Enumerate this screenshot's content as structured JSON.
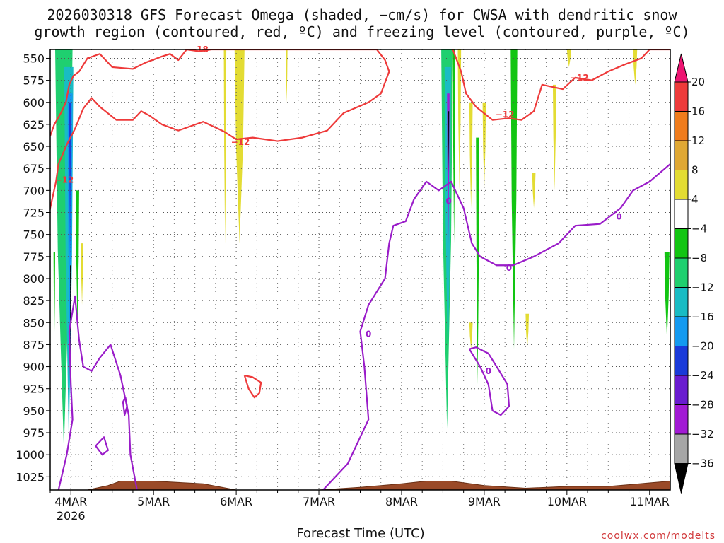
{
  "title": {
    "line1": "2026030318 GFS Forecast Omega (shaded, −cm/s) for CWSA with dendritic snow",
    "line2": "growth region (contoured, red, ºC) and freezing level (contoured, purple, ºC)"
  },
  "credit": "coolwx.com/modelts",
  "chart_data": {
    "type": "heatmap",
    "xlabel": "Forecast Time (UTC)",
    "ylabel": "Pressure (hPa)",
    "x_ticks": [
      {
        "label": "4MAR",
        "sublabel": "2026",
        "day": 0
      },
      {
        "label": "5MAR",
        "day": 1
      },
      {
        "label": "6MAR",
        "day": 2
      },
      {
        "label": "7MAR",
        "day": 3
      },
      {
        "label": "8MAR",
        "day": 4
      },
      {
        "label": "9MAR",
        "day": 5
      },
      {
        "label": "10MAR",
        "day": 6
      },
      {
        "label": "11MAR",
        "day": 7
      }
    ],
    "xlim": [
      -0.25,
      7.25
    ],
    "y_ticks": [
      550,
      575,
      600,
      625,
      650,
      675,
      700,
      725,
      750,
      775,
      800,
      825,
      850,
      875,
      900,
      925,
      950,
      975,
      1000,
      1025
    ],
    "ylim": [
      540,
      1040
    ],
    "grid": true,
    "colorbar": {
      "labels": [
        "20",
        "16",
        "12",
        "8",
        "4",
        "−4",
        "−8",
        "−12",
        "−16",
        "−20",
        "−24",
        "−28",
        "−32",
        "−36"
      ],
      "bins": [
        {
          "lo": 16,
          "hi": 20,
          "color": "#ee3a3a"
        },
        {
          "lo": 12,
          "hi": 16,
          "color": "#f07c1d"
        },
        {
          "lo": 8,
          "hi": 12,
          "color": "#e0a834"
        },
        {
          "lo": 4,
          "hi": 8,
          "color": "#e3dc33"
        },
        {
          "lo": -4,
          "hi": 4,
          "color": "#ffffff"
        },
        {
          "lo": -8,
          "hi": -4,
          "color": "#12c512"
        },
        {
          "lo": -12,
          "hi": -8,
          "color": "#1fcf6f"
        },
        {
          "lo": -16,
          "hi": -12,
          "color": "#19bcc4"
        },
        {
          "lo": -20,
          "hi": -16,
          "color": "#149af0"
        },
        {
          "lo": -24,
          "hi": -20,
          "color": "#1a3ad9"
        },
        {
          "lo": -28,
          "hi": -24,
          "color": "#6a1cd0"
        },
        {
          "lo": -32,
          "hi": -28,
          "color": "#a21ad4"
        },
        {
          "lo": -36,
          "hi": -32,
          "color": "#a6a6a6"
        }
      ],
      "over_color": "#ee1572",
      "under_color": "#000000"
    },
    "omega_regions": [
      {
        "name": "mar4-ascent-outer",
        "color": "#1fcf6f",
        "t": [
          -0.19,
          0.02
        ],
        "p_top": 540,
        "p_bot": 995
      },
      {
        "name": "mar4-ascent-cyan",
        "color": "#19bcc4",
        "t": [
          -0.08,
          0.03
        ],
        "p_top": 560,
        "p_bot": 990
      },
      {
        "name": "mar4-ascent-blue",
        "color": "#149af0",
        "t": [
          -0.04,
          0.02
        ],
        "p_top": 590,
        "p_bot": 940
      },
      {
        "name": "mar4-ascent-core",
        "color": "#1a3ad9",
        "t": [
          -0.02,
          0.0
        ],
        "p_top": 600,
        "p_bot": 780
      },
      {
        "name": "mar4-ascent-max",
        "color": "#000000",
        "t": [
          -0.01,
          0.0
        ],
        "p_top": 785,
        "p_bot": 905
      },
      {
        "name": "mar4-green-side",
        "color": "#12c512",
        "t": [
          0.06,
          0.1
        ],
        "p_top": 700,
        "p_bot": 860
      },
      {
        "name": "mar4-green-left",
        "color": "#12c512",
        "t": [
          -0.21,
          -0.19
        ],
        "p_top": 770,
        "p_bot": 870
      },
      {
        "name": "mar4-yellow",
        "color": "#e3dc33",
        "t": [
          0.12,
          0.15
        ],
        "p_top": 760,
        "p_bot": 830
      },
      {
        "name": "mar6-yellow-a",
        "color": "#e3dc33",
        "t": [
          1.85,
          1.88
        ],
        "p_top": 540,
        "p_bot": 760
      },
      {
        "name": "mar6-yellow-b",
        "color": "#e3dc33",
        "t": [
          1.98,
          2.1
        ],
        "p_top": 540,
        "p_bot": 760
      },
      {
        "name": "mar6-yellow-c",
        "color": "#e3dc33",
        "t": [
          2.6,
          2.62
        ],
        "p_top": 540,
        "p_bot": 600
      },
      {
        "name": "mar8-ascent-outer",
        "color": "#1fcf6f",
        "t": [
          4.48,
          4.62
        ],
        "p_top": 540,
        "p_bot": 970
      },
      {
        "name": "mar8-ascent-cyan",
        "color": "#19bcc4",
        "t": [
          4.52,
          4.6
        ],
        "p_top": 560,
        "p_bot": 900
      },
      {
        "name": "mar8-ascent-violet",
        "color": "#a21ad4",
        "t": [
          4.55,
          4.58
        ],
        "p_top": 590,
        "p_bot": 760
      },
      {
        "name": "mar8-ascent-max",
        "color": "#000000",
        "t": [
          4.565,
          4.575
        ],
        "p_top": 610,
        "p_bot": 680
      },
      {
        "name": "mar8-green-a",
        "color": "#12c512",
        "t": [
          4.62,
          4.65
        ],
        "p_top": 540,
        "p_bot": 760
      },
      {
        "name": "mar8-green-b",
        "color": "#12c512",
        "t": [
          4.9,
          4.94
        ],
        "p_top": 640,
        "p_bot": 920
      },
      {
        "name": "mar9-green-c",
        "color": "#12c512",
        "t": [
          5.32,
          5.4
        ],
        "p_top": 540,
        "p_bot": 880
      },
      {
        "name": "mar8-yellow-a",
        "color": "#e3dc33",
        "t": [
          4.68,
          4.72
        ],
        "p_top": 540,
        "p_bot": 700
      },
      {
        "name": "mar9-yellow-b",
        "color": "#e3dc33",
        "t": [
          4.82,
          4.86
        ],
        "p_top": 600,
        "p_bot": 720
      },
      {
        "name": "mar9-yellow-c",
        "color": "#e3dc33",
        "t": [
          4.98,
          5.02
        ],
        "p_top": 600,
        "p_bot": 700
      },
      {
        "name": "mar9-yellow-d",
        "color": "#e3dc33",
        "t": [
          4.82,
          4.86
        ],
        "p_top": 850,
        "p_bot": 880
      },
      {
        "name": "mar10-yellow-a",
        "color": "#e3dc33",
        "t": [
          5.5,
          5.54
        ],
        "p_top": 840,
        "p_bot": 880
      },
      {
        "name": "mar10-yellow-b",
        "color": "#e3dc33",
        "t": [
          5.58,
          5.62
        ],
        "p_top": 680,
        "p_bot": 720
      },
      {
        "name": "mar10-yellow-c",
        "color": "#e3dc33",
        "t": [
          5.83,
          5.87
        ],
        "p_top": 580,
        "p_bot": 700
      },
      {
        "name": "mar10-yellow-d",
        "color": "#e3dc33",
        "t": [
          6.0,
          6.05
        ],
        "p_top": 540,
        "p_bot": 560
      },
      {
        "name": "mar11-yellow",
        "color": "#e3dc33",
        "t": [
          6.8,
          6.85
        ],
        "p_top": 540,
        "p_bot": 580
      },
      {
        "name": "mar11-green",
        "color": "#12c512",
        "t": [
          7.18,
          7.24
        ],
        "p_top": 770,
        "p_bot": 870
      }
    ],
    "contours": [
      {
        "name": "dgz-minus12-upper",
        "level": -12,
        "color": "#ee3a3a",
        "points": [
          [
            -0.25,
            638
          ],
          [
            -0.2,
            625
          ],
          [
            -0.12,
            612
          ],
          [
            -0.06,
            600
          ],
          [
            -0.02,
            580
          ],
          [
            0.03,
            570
          ],
          [
            0.1,
            565
          ],
          [
            0.2,
            550
          ],
          [
            0.35,
            545
          ],
          [
            0.5,
            560
          ],
          [
            0.75,
            562
          ],
          [
            0.9,
            555
          ],
          [
            1.1,
            548
          ],
          [
            1.2,
            545
          ],
          [
            1.3,
            552
          ],
          [
            1.4,
            540
          ],
          [
            1.55,
            542
          ],
          [
            1.7,
            540
          ],
          [
            2.0,
            540
          ],
          [
            2.2,
            540
          ],
          [
            2.45,
            540
          ],
          [
            2.6,
            540
          ],
          [
            2.7,
            540
          ],
          [
            3.0,
            540
          ],
          [
            3.2,
            540
          ],
          [
            3.5,
            540
          ],
          [
            3.7,
            540
          ],
          [
            3.8,
            552
          ],
          [
            3.85,
            565
          ],
          [
            3.75,
            590
          ],
          [
            3.6,
            600
          ],
          [
            3.3,
            612
          ],
          [
            3.1,
            632
          ],
          [
            2.8,
            640
          ],
          [
            2.5,
            644
          ],
          [
            2.2,
            640
          ],
          [
            2.0,
            642
          ],
          [
            1.85,
            633
          ],
          [
            1.6,
            622
          ],
          [
            1.3,
            632
          ],
          [
            1.1,
            625
          ],
          [
            0.95,
            615
          ],
          [
            0.85,
            610
          ],
          [
            0.75,
            620
          ],
          [
            0.55,
            620
          ],
          [
            0.35,
            605
          ],
          [
            0.25,
            595
          ],
          [
            0.15,
            607
          ],
          [
            0.05,
            630
          ],
          [
            -0.05,
            648
          ],
          [
            -0.15,
            670
          ],
          [
            -0.18,
            690
          ],
          [
            -0.25,
            720
          ],
          [
            -0.3,
            745
          ]
        ]
      },
      {
        "name": "dgz-minus12-right",
        "level": -12,
        "color": "#ee3a3a",
        "points": [
          [
            4.62,
            540
          ],
          [
            4.72,
            565
          ],
          [
            4.78,
            590
          ],
          [
            4.9,
            605
          ],
          [
            5.1,
            620
          ],
          [
            5.3,
            618
          ],
          [
            5.45,
            620
          ],
          [
            5.6,
            610
          ],
          [
            5.7,
            580
          ],
          [
            5.95,
            585
          ],
          [
            6.1,
            572
          ],
          [
            6.3,
            575
          ],
          [
            6.5,
            565
          ],
          [
            6.7,
            557
          ],
          [
            6.9,
            550
          ],
          [
            7.0,
            540
          ],
          [
            7.25,
            540
          ]
        ]
      },
      {
        "name": "freezing-level-left",
        "level": 0,
        "color": "#9a1cc9",
        "points": [
          [
            -0.15,
            1040
          ],
          [
            -0.05,
            1000
          ],
          [
            0.02,
            960
          ],
          [
            0.0,
            920
          ],
          [
            -0.02,
            860
          ],
          [
            0.05,
            820
          ],
          [
            0.1,
            870
          ],
          [
            0.15,
            900
          ],
          [
            0.25,
            905
          ],
          [
            0.35,
            890
          ],
          [
            0.48,
            875
          ],
          [
            0.6,
            910
          ],
          [
            0.7,
            955
          ],
          [
            0.72,
            1000
          ],
          [
            0.8,
            1040
          ]
        ]
      },
      {
        "name": "freezing-level-mid",
        "level": 0,
        "color": "#9a1cc9",
        "points": [
          [
            3.05,
            1040
          ],
          [
            3.35,
            1010
          ],
          [
            3.6,
            960
          ],
          [
            3.55,
            900
          ],
          [
            3.5,
            860
          ],
          [
            3.6,
            830
          ],
          [
            3.8,
            800
          ],
          [
            3.85,
            760
          ],
          [
            3.9,
            740
          ],
          [
            4.05,
            735
          ],
          [
            4.15,
            710
          ],
          [
            4.3,
            690
          ],
          [
            4.45,
            700
          ],
          [
            4.6,
            690
          ],
          [
            4.75,
            720
          ],
          [
            4.85,
            760
          ],
          [
            4.95,
            775
          ],
          [
            5.15,
            785
          ],
          [
            5.35,
            785
          ],
          [
            5.6,
            775
          ],
          [
            5.9,
            760
          ],
          [
            6.1,
            740
          ],
          [
            6.4,
            738
          ],
          [
            6.65,
            720
          ],
          [
            6.8,
            700
          ],
          [
            7.0,
            690
          ],
          [
            7.25,
            670
          ]
        ]
      },
      {
        "name": "freezing-level-closed",
        "level": 0,
        "color": "#9a1cc9",
        "points": [
          [
            4.82,
            880
          ],
          [
            4.95,
            900
          ],
          [
            5.05,
            920
          ],
          [
            5.1,
            950
          ],
          [
            5.2,
            955
          ],
          [
            5.3,
            945
          ],
          [
            5.28,
            920
          ],
          [
            5.15,
            900
          ],
          [
            5.05,
            885
          ],
          [
            4.9,
            878
          ],
          [
            4.82,
            880
          ]
        ]
      },
      {
        "name": "small-red-closed",
        "level": -12,
        "color": "#ee3a3a",
        "points": [
          [
            2.1,
            910
          ],
          [
            2.15,
            925
          ],
          [
            2.22,
            935
          ],
          [
            2.28,
            930
          ],
          [
            2.3,
            918
          ],
          [
            2.2,
            912
          ],
          [
            2.1,
            910
          ]
        ]
      },
      {
        "name": "small-purple-closed-a",
        "level": 0,
        "color": "#9a1cc9",
        "points": [
          [
            0.3,
            990
          ],
          [
            0.38,
            1000
          ],
          [
            0.45,
            995
          ],
          [
            0.4,
            980
          ],
          [
            0.3,
            990
          ]
        ]
      },
      {
        "name": "small-purple-closed-b",
        "level": 0,
        "color": "#9a1cc9",
        "points": [
          [
            0.63,
            940
          ],
          [
            0.65,
            955
          ],
          [
            0.68,
            945
          ],
          [
            0.66,
            935
          ],
          [
            0.63,
            940
          ]
        ]
      }
    ],
    "contour_labels": [
      {
        "text": "−18",
        "t": 1.55,
        "p": 540,
        "color": "red"
      },
      {
        "text": "−12",
        "t": 2.05,
        "p": 645,
        "color": "red"
      },
      {
        "text": "−12",
        "t": -0.08,
        "p": 688,
        "color": "red"
      },
      {
        "text": "−12",
        "t": 5.25,
        "p": 614,
        "color": "red"
      },
      {
        "text": "−12",
        "t": 6.15,
        "p": 572,
        "color": "red"
      },
      {
        "text": "0",
        "t": 4.57,
        "p": 712,
        "color": "purple"
      },
      {
        "text": "0",
        "t": 3.6,
        "p": 863,
        "color": "purple"
      },
      {
        "text": "0",
        "t": 5.3,
        "p": 788,
        "color": "purple"
      },
      {
        "text": "0",
        "t": 5.05,
        "p": 905,
        "color": "purple"
      },
      {
        "text": "0",
        "t": 6.63,
        "p": 730,
        "color": "purple"
      }
    ],
    "terrain": {
      "color": "#9a4a28",
      "points": [
        [
          -0.25,
          1043
        ],
        [
          0.2,
          1040
        ],
        [
          0.45,
          1035
        ],
        [
          0.6,
          1030
        ],
        [
          1.0,
          1030
        ],
        [
          1.6,
          1033
        ],
        [
          2.0,
          1040
        ],
        [
          2.5,
          1040
        ],
        [
          3.0,
          1040
        ],
        [
          3.5,
          1037
        ],
        [
          4.0,
          1033
        ],
        [
          4.3,
          1030
        ],
        [
          4.6,
          1030
        ],
        [
          5.0,
          1035
        ],
        [
          5.5,
          1038
        ],
        [
          6.0,
          1036
        ],
        [
          6.5,
          1036
        ],
        [
          7.0,
          1032
        ],
        [
          7.25,
          1030
        ]
      ]
    }
  }
}
